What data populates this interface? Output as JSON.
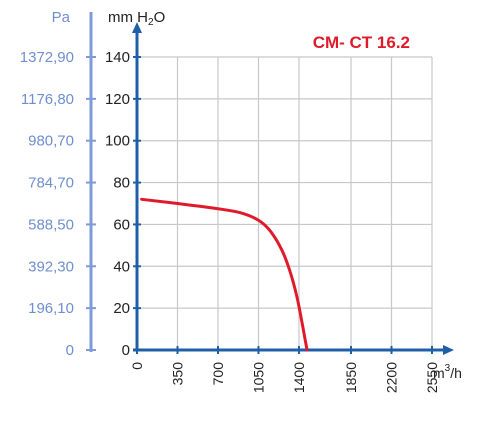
{
  "chart_data": {
    "type": "line",
    "title": "CM- CT 16.2",
    "units": {
      "pa": "Pa",
      "mm_prefix": "mm H",
      "mm_sub": "2",
      "mm_suffix": "O",
      "x_prefix": "m",
      "x_sup": "3",
      "x_suffix": "/h"
    },
    "x": {
      "ticks": [
        0,
        350,
        700,
        1050,
        1400,
        1850,
        2200,
        2550
      ],
      "tick_labels": [
        "0",
        "350",
        "700",
        "1050",
        "1400",
        "1850",
        "2200",
        "2550"
      ],
      "range": [
        0,
        2550
      ]
    },
    "y_mm": {
      "ticks": [
        0,
        20,
        40,
        60,
        80,
        100,
        120,
        140
      ],
      "tick_labels": [
        "0",
        "20",
        "40",
        "60",
        "80",
        "100",
        "120",
        "140"
      ],
      "range": [
        0,
        145
      ]
    },
    "y_pa": {
      "tick_labels": [
        "0",
        "196,10",
        "392,30",
        "588,50",
        "784,70",
        "980,70",
        "1176,80",
        "1372,90"
      ]
    },
    "series": [
      {
        "color": "#e01a2a",
        "x": [
          40,
          350,
          700,
          900,
          1050,
          1150,
          1250,
          1320,
          1380,
          1420,
          1450,
          1470
        ],
        "y": [
          72,
          70,
          67.5,
          65.5,
          62,
          57,
          48,
          38,
          26,
          15,
          6,
          0
        ]
      }
    ],
    "grid": true
  },
  "colors": {
    "axis": "#1f5fa8",
    "grid": "#c8c8c8",
    "pa_axis": "#7f9ad8",
    "curve": "#e01a2a"
  }
}
